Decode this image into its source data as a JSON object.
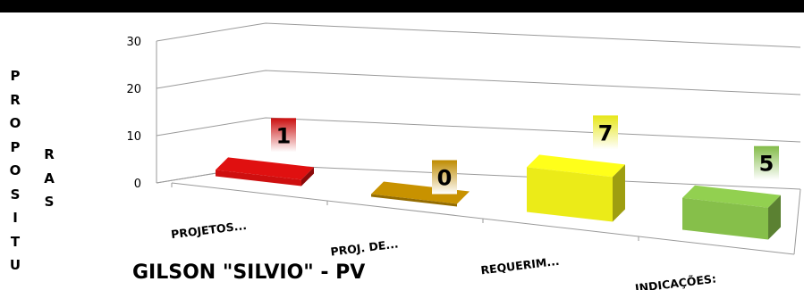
{
  "chart_data": {
    "type": "bar",
    "categories": [
      "PROJETOS...",
      "PROJ. DE...",
      "REQUERIM...",
      "INDICAÇÕES:"
    ],
    "values": [
      1,
      0,
      7,
      5
    ],
    "data_labels": [
      "1",
      "0",
      "7",
      "5"
    ],
    "colors": [
      "#e01010",
      "#d39a00",
      "#ffff1a",
      "#92d050"
    ],
    "yticks": [
      "0",
      "10",
      "20",
      "30"
    ],
    "ylim": [
      0,
      30
    ],
    "ylabel_part1": "PROPOSITU",
    "ylabel_part2": "RAS",
    "title": "GILSON \"SILVIO\" - PV",
    "grid": true,
    "projection": "3d"
  }
}
